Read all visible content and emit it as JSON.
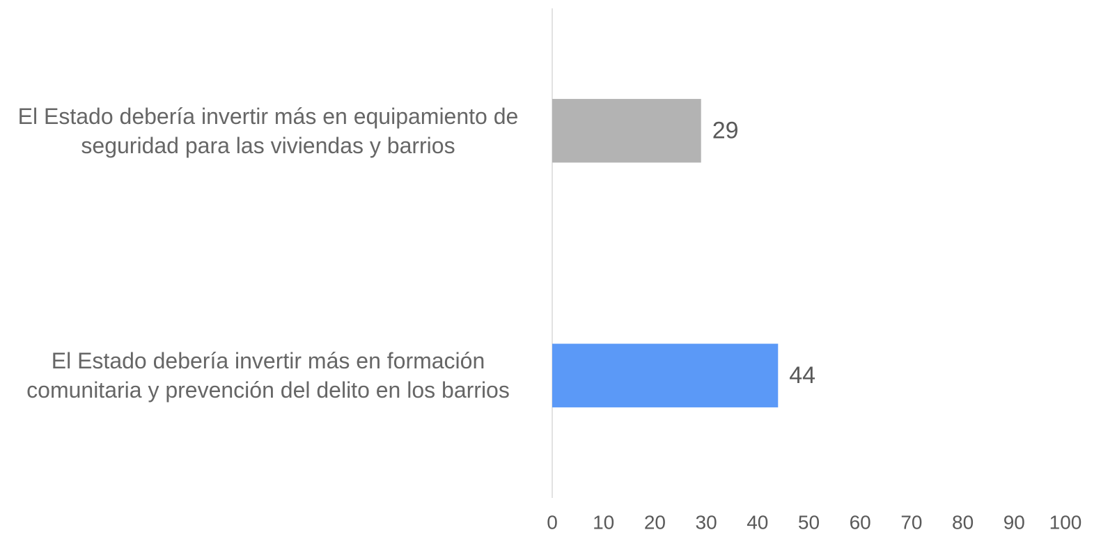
{
  "chart_data": {
    "type": "hbar",
    "categories": [
      "El Estado debería invertir más en equipamiento de seguridad para las viviendas y barrios",
      "El Estado debería invertir más en formación comunitaria y prevención del delito en los barrios"
    ],
    "values": [
      29,
      44
    ],
    "colors": [
      "#b3b3b3",
      "#5b99f7"
    ],
    "xlim": [
      0,
      100
    ],
    "xticks": [
      0,
      10,
      20,
      30,
      40,
      50,
      60,
      70,
      80,
      90,
      100
    ],
    "grid": false
  }
}
